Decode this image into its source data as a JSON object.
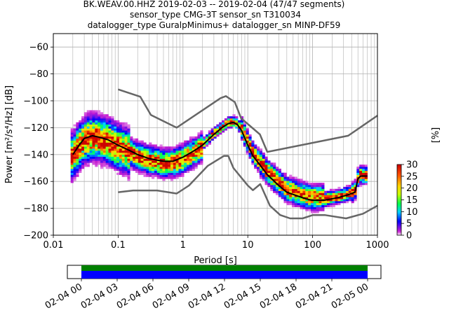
{
  "title_lines": [
    "BK.WEAV.00.HHZ   2019-02-03 -- 2019-02-04  (47/47 segments)",
    "sensor_type CMG-3T sensor_sn T310034",
    "datalogger_type GuralpMinimus+ datalogger_sn MINP-DF59"
  ],
  "chart_data": {
    "type": "heatmap",
    "xlabel": "Period [s]",
    "ylabel": "Power [m²/s⁴/Hz] [dB]",
    "xscale": "log",
    "xlim": [
      0.01,
      1000
    ],
    "ylim": [
      -200,
      -50
    ],
    "x_ticks": [
      0.01,
      0.1,
      1,
      10,
      100,
      1000
    ],
    "x_tick_labels": [
      "0.01",
      "0.1",
      "1",
      "10",
      "100",
      "1000"
    ],
    "y_ticks": [
      -200,
      -180,
      -160,
      -140,
      -120,
      -100,
      -80,
      -60
    ],
    "y_tick_labels": [
      "−200",
      "−180",
      "−160",
      "−140",
      "−120",
      "−100",
      "−80",
      "−60"
    ],
    "grid": true,
    "colorbar": {
      "label": "[%]",
      "range": [
        0,
        30
      ],
      "ticks": [
        0,
        5,
        10,
        15,
        20,
        25,
        30
      ],
      "tick_labels": [
        "0",
        "5",
        "10",
        "15",
        "20",
        "25",
        "30"
      ],
      "colors": [
        "#ffffff",
        "#c71fd1",
        "#0000ff",
        "#00d0ff",
        "#00ff4a",
        "#c7ff00",
        "#ffd400",
        "#ff5500",
        "#cc0000"
      ]
    },
    "series": [
      {
        "name": "",
        "role": "mean",
        "color": "#000000",
        "points": [
          [
            0.02,
            -140
          ],
          [
            0.025,
            -133
          ],
          [
            0.03,
            -128
          ],
          [
            0.04,
            -126
          ],
          [
            0.05,
            -127
          ],
          [
            0.07,
            -129
          ],
          [
            0.1,
            -133
          ],
          [
            0.15,
            -137
          ],
          [
            0.2,
            -140
          ],
          [
            0.3,
            -143
          ],
          [
            0.5,
            -145
          ],
          [
            0.7,
            -145
          ],
          [
            1,
            -142
          ],
          [
            1.5,
            -137
          ],
          [
            2,
            -133
          ],
          [
            3,
            -125
          ],
          [
            4,
            -120
          ],
          [
            5,
            -117
          ],
          [
            6,
            -116
          ],
          [
            7,
            -118
          ],
          [
            8,
            -122
          ],
          [
            10,
            -133
          ],
          [
            12,
            -141
          ],
          [
            15,
            -147
          ],
          [
            20,
            -155
          ],
          [
            30,
            -163
          ],
          [
            40,
            -168
          ],
          [
            60,
            -171
          ],
          [
            80,
            -173
          ],
          [
            100,
            -174
          ],
          [
            150,
            -174
          ],
          [
            250,
            -172
          ],
          [
            350,
            -170
          ],
          [
            450,
            -168
          ],
          [
            500,
            -158
          ],
          [
            550,
            -156
          ],
          [
            700,
            -156
          ]
        ]
      },
      {
        "name": "",
        "role": "noise-model-high",
        "color": "#666666",
        "points": [
          [
            0.1,
            -91.5
          ],
          [
            0.22,
            -97
          ],
          [
            0.32,
            -110.5
          ],
          [
            0.8,
            -120
          ],
          [
            3.8,
            -98
          ],
          [
            4.6,
            -96.5
          ],
          [
            6.3,
            -101
          ],
          [
            7.9,
            -113
          ],
          [
            15.4,
            -125
          ],
          [
            20,
            -138
          ],
          [
            354,
            -126
          ],
          [
            1000,
            -111
          ]
        ]
      },
      {
        "name": "",
        "role": "noise-model-low",
        "color": "#666666",
        "points": [
          [
            0.1,
            -168
          ],
          [
            0.17,
            -166.7
          ],
          [
            0.4,
            -166.7
          ],
          [
            0.8,
            -169
          ],
          [
            1.24,
            -163
          ],
          [
            2.4,
            -148.5
          ],
          [
            4.3,
            -141
          ],
          [
            5,
            -141
          ],
          [
            6,
            -150
          ],
          [
            10,
            -163
          ],
          [
            12,
            -166.5
          ],
          [
            15.6,
            -162
          ],
          [
            21.9,
            -178
          ],
          [
            31.6,
            -185
          ],
          [
            45,
            -187.5
          ],
          [
            70,
            -187.5
          ],
          [
            101,
            -185
          ],
          [
            154,
            -185
          ],
          [
            328,
            -187.5
          ],
          [
            600,
            -184
          ],
          [
            1000,
            -178
          ]
        ]
      }
    ]
  },
  "availability": {
    "tick_labels": [
      "02-04 00",
      "02-04 03",
      "02-04 06",
      "02-04 09",
      "02-04 12",
      "02-04 15",
      "02-04 18",
      "02-04 21",
      "02-05 00"
    ],
    "colors": {
      "gaps_free": "#008000",
      "data": "#0000ff"
    }
  }
}
